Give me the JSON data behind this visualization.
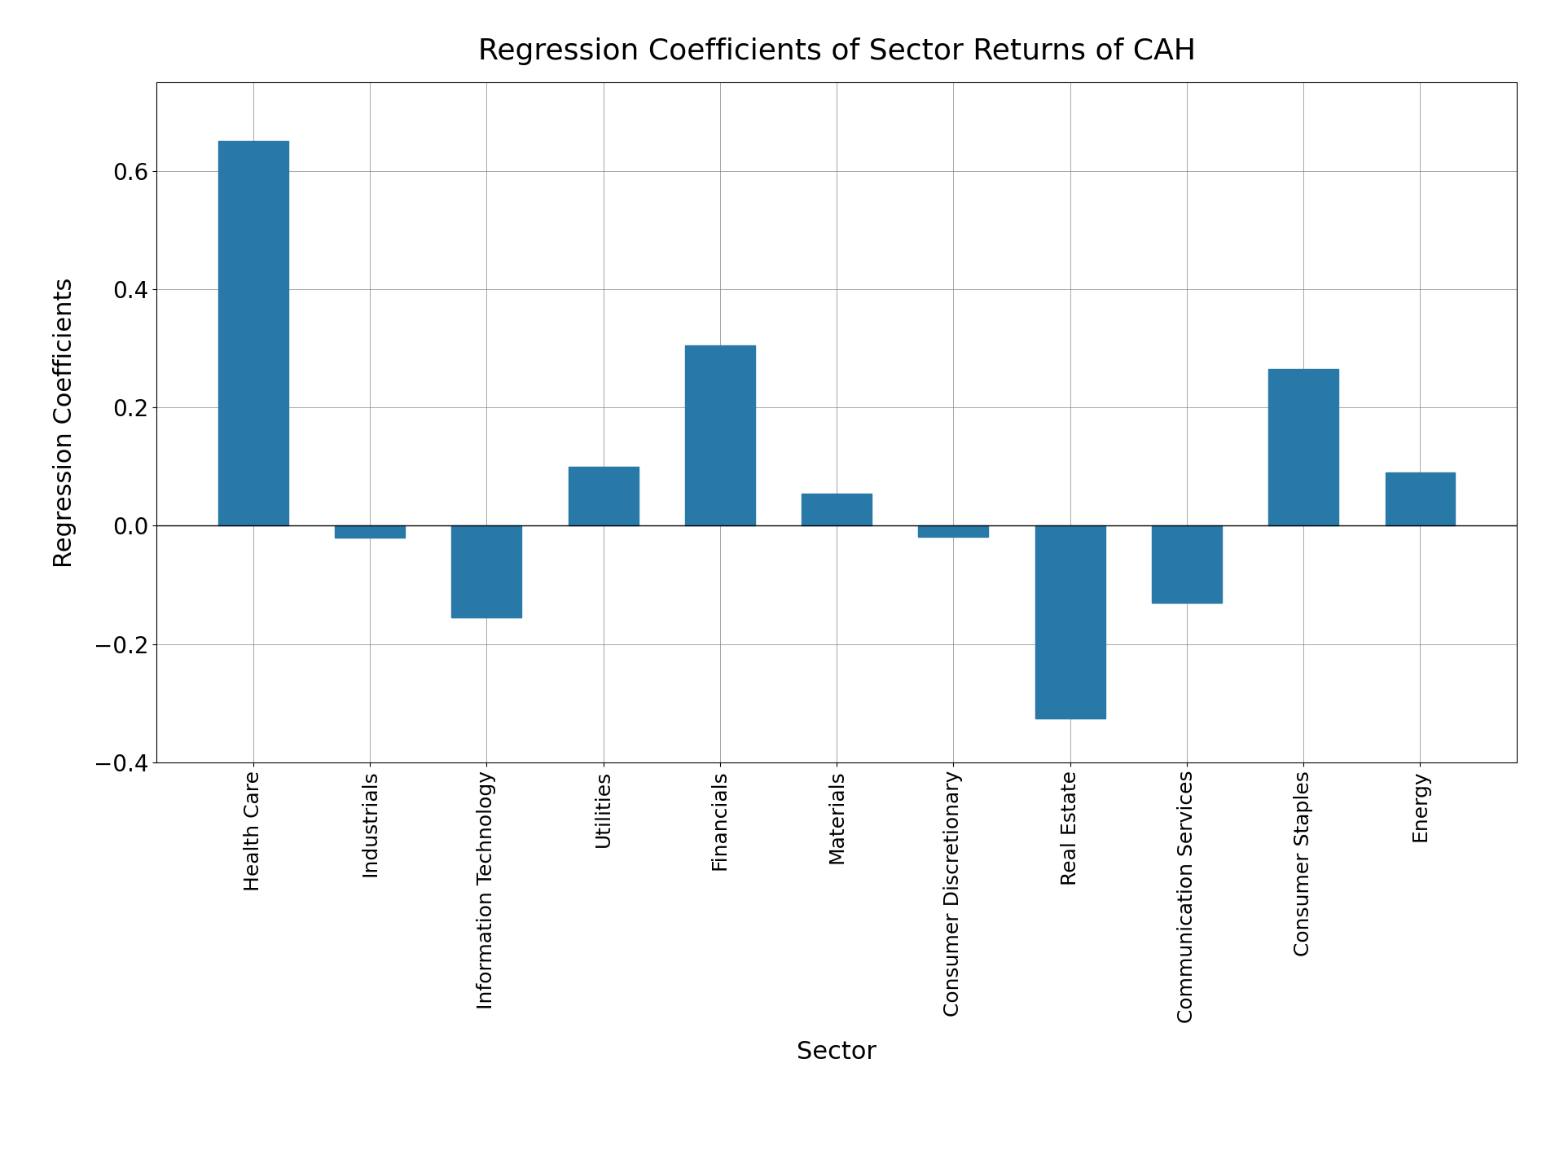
{
  "categories": [
    "Health Care",
    "Industrials",
    "Information Technology",
    "Utilities",
    "Financials",
    "Materials",
    "Consumer Discretionary",
    "Real Estate",
    "Communication Services",
    "Consumer Staples",
    "Energy"
  ],
  "values": [
    0.65,
    -0.02,
    -0.155,
    0.1,
    0.305,
    0.055,
    -0.018,
    -0.325,
    -0.13,
    0.265,
    0.09
  ],
  "bar_color": "#2878a8",
  "title": "Regression Coefficients of Sector Returns of CAH",
  "xlabel": "Sector",
  "ylabel": "Regression Coefficients",
  "title_fontsize": 26,
  "label_fontsize": 22,
  "tick_fontsize": 18,
  "ytick_fontsize": 20,
  "ylim": [
    -0.4,
    0.75
  ],
  "grid": true,
  "background_color": "#ffffff"
}
